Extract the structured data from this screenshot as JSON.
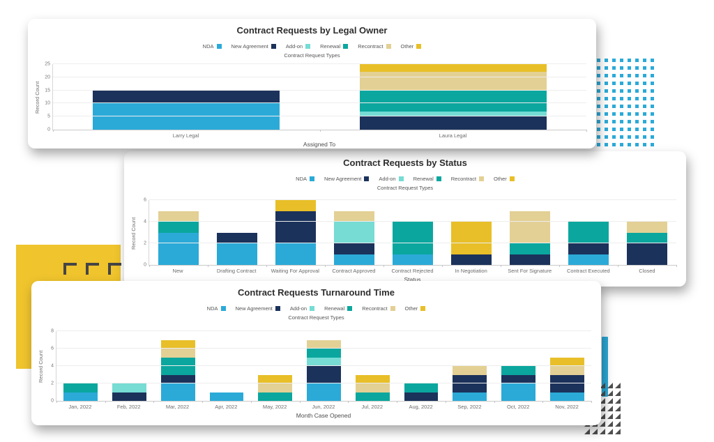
{
  "legend": {
    "subtitle": "Contract Request Types",
    "items": [
      {
        "label": "NDA",
        "color": "#2BAAD8"
      },
      {
        "label": "New Agreement",
        "color": "#1B325B"
      },
      {
        "label": "Add-on",
        "color": "#76DCD4"
      },
      {
        "label": "Renewal",
        "color": "#0BA79E"
      },
      {
        "label": "Recontract",
        "color": "#E3D094"
      },
      {
        "label": "Other",
        "color": "#E8BF28"
      }
    ]
  },
  "chart_data": [
    {
      "type": "bar",
      "stacked": true,
      "title": "Contract Requests by Legal Owner",
      "xlabel": "Assigned To",
      "ylabel": "Record Count",
      "ymax": 25,
      "yticks": [
        0,
        5,
        10,
        15,
        20,
        25
      ],
      "legend_position": "top",
      "categories": [
        "Larry Legal",
        "Laura Legal"
      ],
      "series": [
        {
          "name": "NDA",
          "values": [
            10,
            0
          ]
        },
        {
          "name": "New Agreement",
          "values": [
            5,
            5
          ]
        },
        {
          "name": "Add-on",
          "values": [
            0,
            2
          ]
        },
        {
          "name": "Renewal",
          "values": [
            0,
            8
          ]
        },
        {
          "name": "Recontract",
          "values": [
            0,
            7
          ]
        },
        {
          "name": "Other",
          "values": [
            0,
            3
          ]
        }
      ]
    },
    {
      "type": "bar",
      "stacked": true,
      "title": "Contract Requests by Status",
      "xlabel": "Status",
      "ylabel": "Record Count",
      "ymax": 6,
      "yticks": [
        0,
        2,
        4,
        6
      ],
      "legend_position": "top",
      "categories": [
        "New",
        "Drafting Contract",
        "Waiting For Approval",
        "Contract Approved",
        "Contract Rejected",
        "In Negotiation",
        "Sent For Signature",
        "Contract Executed",
        "Closed"
      ],
      "series": [
        {
          "name": "NDA",
          "values": [
            3,
            2,
            2,
            1,
            1,
            0,
            0,
            1,
            0
          ]
        },
        {
          "name": "New Agreement",
          "values": [
            0,
            1,
            3,
            1,
            0,
            1,
            1,
            1,
            2
          ]
        },
        {
          "name": "Add-on",
          "values": [
            0,
            0,
            0,
            2,
            0,
            0,
            0,
            0,
            0
          ]
        },
        {
          "name": "Renewal",
          "values": [
            1,
            0,
            0,
            0,
            3,
            0,
            1,
            2,
            1
          ]
        },
        {
          "name": "Recontract",
          "values": [
            1,
            0,
            0,
            1,
            0,
            0,
            3,
            0,
            1
          ]
        },
        {
          "name": "Other",
          "values": [
            0,
            0,
            1,
            0,
            0,
            3,
            0,
            0,
            0
          ]
        }
      ]
    },
    {
      "type": "bar",
      "stacked": true,
      "title": "Contract Requests Turnaround Time",
      "xlabel": "Month Case Opened",
      "ylabel": "Record Count",
      "ymax": 8,
      "yticks": [
        0,
        2,
        4,
        6,
        8
      ],
      "legend_position": "top",
      "categories": [
        "Jan, 2022",
        "Feb, 2022",
        "Mar, 2022",
        "Apr, 2022",
        "May, 2022",
        "Jun, 2022",
        "Jul, 2022",
        "Aug, 2022",
        "Sep, 2022",
        "Oct, 2022",
        "Nov, 2022"
      ],
      "series": [
        {
          "name": "NDA",
          "values": [
            1,
            0,
            2,
            1,
            0,
            2,
            0,
            0,
            1,
            2,
            1
          ]
        },
        {
          "name": "New Agreement",
          "values": [
            0,
            1,
            1,
            0,
            0,
            2,
            0,
            1,
            2,
            1,
            2
          ]
        },
        {
          "name": "Add-on",
          "values": [
            0,
            1,
            0,
            0,
            0,
            1,
            0,
            0,
            0,
            0,
            0
          ]
        },
        {
          "name": "Renewal",
          "values": [
            1,
            0,
            2,
            0,
            1,
            1,
            1,
            1,
            0,
            1,
            0
          ]
        },
        {
          "name": "Recontract",
          "values": [
            0,
            0,
            1,
            0,
            1,
            1,
            1,
            0,
            1,
            0,
            1
          ]
        },
        {
          "name": "Other",
          "values": [
            0,
            0,
            1,
            0,
            1,
            0,
            1,
            0,
            0,
            0,
            1
          ]
        }
      ]
    }
  ],
  "decor": {
    "dot_color": "#2BAAD8",
    "square_color": "#EFC42D",
    "bracket_color": "#454545",
    "triangle_color": "#4F4F4F",
    "bar_color": "#2BAAD8"
  }
}
